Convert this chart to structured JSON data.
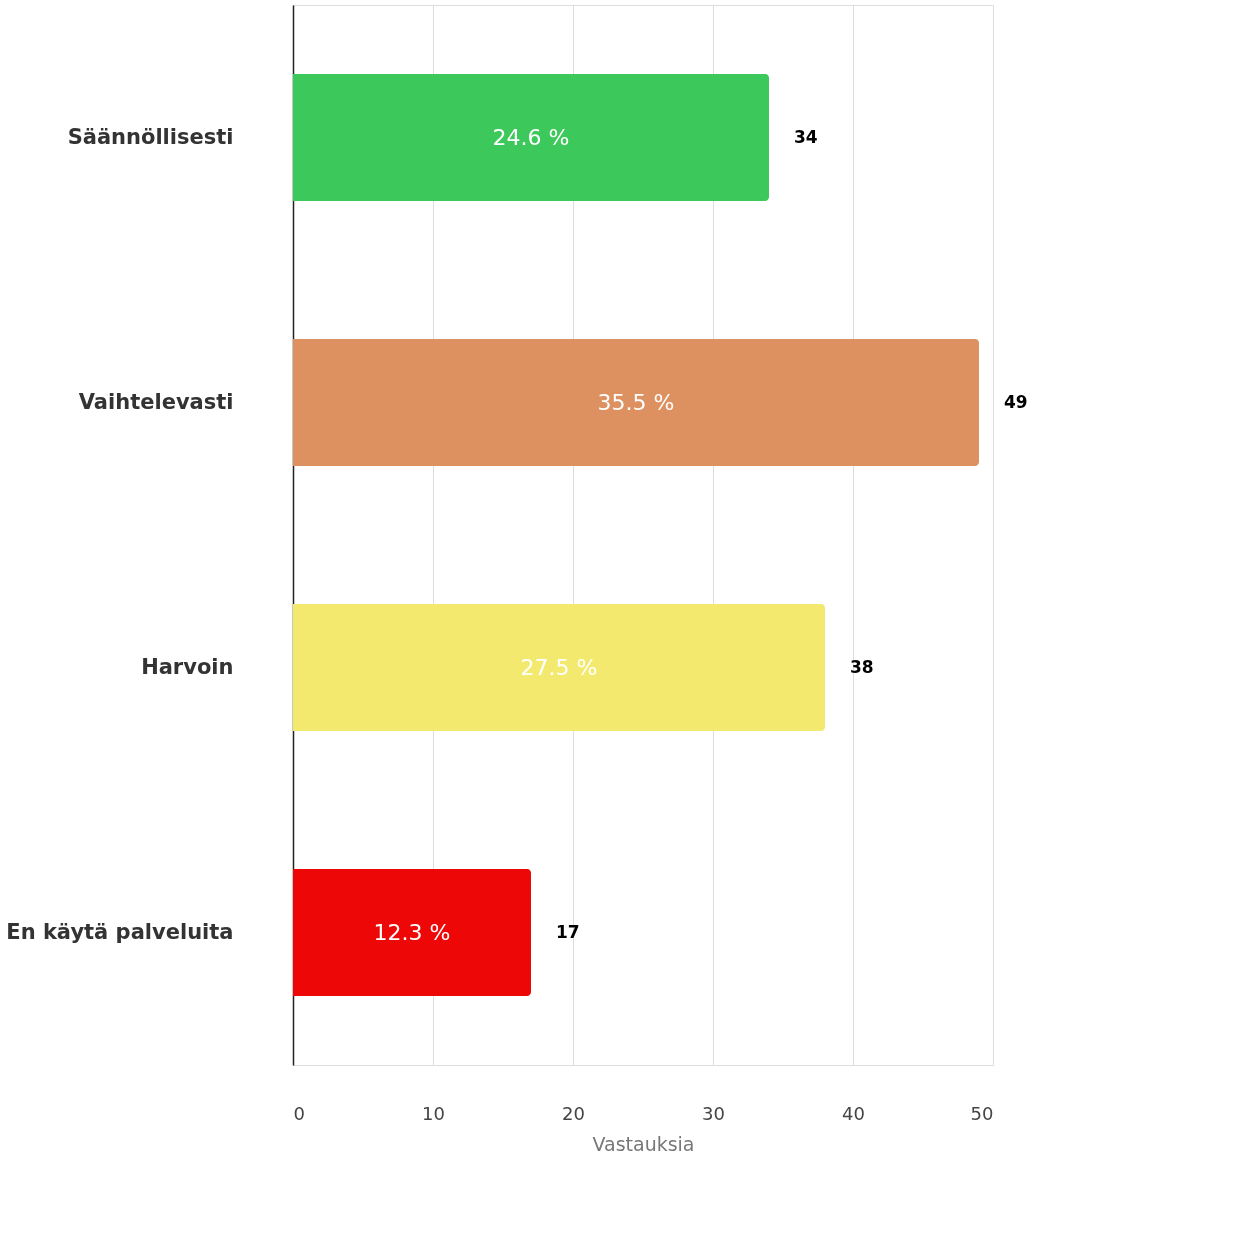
{
  "chart_data": {
    "type": "bar",
    "orientation": "horizontal",
    "xlabel": "Vastauksia",
    "categories": [
      "Säännöllisesti",
      "Vaihtelevasti",
      "Harvoin",
      "En käytä palveluita"
    ],
    "values": [
      34,
      49,
      38,
      17
    ],
    "colors": [
      "#3cc85a",
      "#dd9060",
      "#f3e96f",
      "#ee0707"
    ],
    "annotations": [
      "24.6 %",
      "35.5 %",
      "27.5 %",
      "12.3 %"
    ],
    "data_labels": true,
    "xlim": [
      0,
      50
    ],
    "xticks": [
      0,
      10,
      20,
      30,
      40,
      50
    ],
    "grid": "x"
  }
}
